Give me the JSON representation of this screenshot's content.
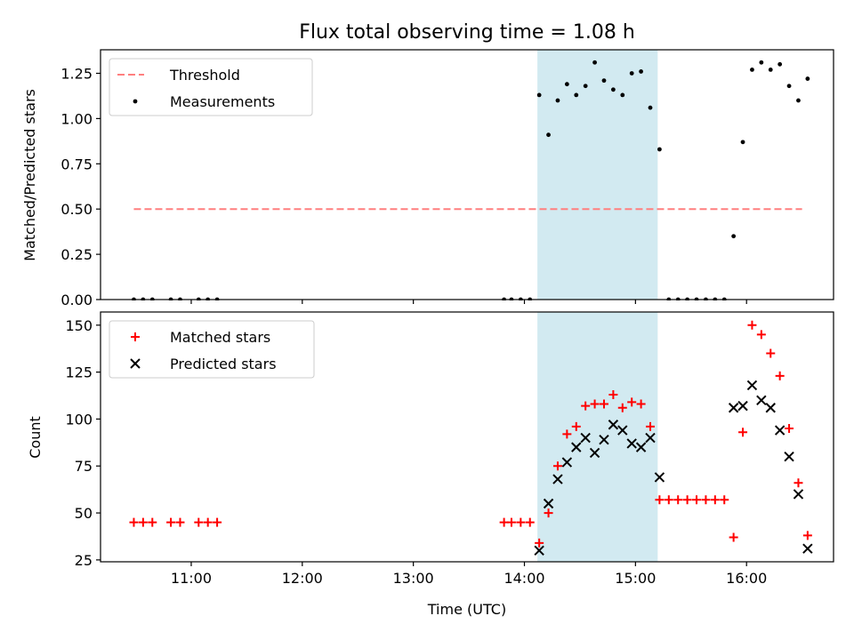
{
  "chart_data": {
    "title": "Flux total observing time = 1.08 h",
    "shaded_interval": {
      "start": "14:07",
      "end": "15:12",
      "color": "#add8e6"
    },
    "x": {
      "label": "Time (UTC)",
      "ticks": [
        "11:00",
        "12:00",
        "13:00",
        "14:00",
        "15:00",
        "16:00"
      ],
      "range": [
        "10:11",
        "16:47"
      ]
    },
    "panels": [
      {
        "type": "scatter",
        "ylabel": "Matched/Predicted stars",
        "ylim": [
          0,
          1.38
        ],
        "yticks": [
          "0.00",
          "0.25",
          "0.50",
          "0.75",
          "1.00",
          "1.25"
        ],
        "legend": {
          "position": "top-left",
          "entries": [
            "Threshold",
            "Measurements"
          ]
        },
        "threshold": {
          "name": "Threshold",
          "value": 0.5,
          "x_start": "10:29",
          "x_end": "16:30",
          "color": "#ff7f7f",
          "style": "dashed"
        },
        "series": [
          {
            "name": "Measurements",
            "marker": "dot",
            "color": "#000000",
            "points": [
              [
                "10:29",
                0
              ],
              [
                "10:34",
                0
              ],
              [
                "10:39",
                0
              ],
              [
                "10:49",
                0
              ],
              [
                "10:54",
                0
              ],
              [
                "11:04",
                0
              ],
              [
                "11:09",
                0
              ],
              [
                "11:14",
                0
              ],
              [
                "13:49",
                0
              ],
              [
                "13:53",
                0
              ],
              [
                "13:58",
                0
              ],
              [
                "14:03",
                0
              ],
              [
                "14:08",
                1.13
              ],
              [
                "14:13",
                0.91
              ],
              [
                "14:18",
                1.1
              ],
              [
                "14:23",
                1.19
              ],
              [
                "14:28",
                1.13
              ],
              [
                "14:33",
                1.18
              ],
              [
                "14:38",
                1.31
              ],
              [
                "14:43",
                1.21
              ],
              [
                "14:48",
                1.16
              ],
              [
                "14:53",
                1.13
              ],
              [
                "14:58",
                1.25
              ],
              [
                "15:03",
                1.26
              ],
              [
                "15:08",
                1.06
              ],
              [
                "15:13",
                0.83
              ],
              [
                "15:18",
                0
              ],
              [
                "15:23",
                0
              ],
              [
                "15:28",
                0
              ],
              [
                "15:33",
                0
              ],
              [
                "15:38",
                0
              ],
              [
                "15:43",
                0
              ],
              [
                "15:48",
                0
              ],
              [
                "15:53",
                0.35
              ],
              [
                "15:58",
                0.87
              ],
              [
                "16:03",
                1.27
              ],
              [
                "16:08",
                1.31
              ],
              [
                "16:13",
                1.27
              ],
              [
                "16:18",
                1.3
              ],
              [
                "16:23",
                1.18
              ],
              [
                "16:28",
                1.1
              ],
              [
                "16:33",
                1.22
              ]
            ]
          }
        ]
      },
      {
        "type": "scatter",
        "ylabel": "Count",
        "ylim": [
          24,
          157
        ],
        "yticks": [
          "25",
          "50",
          "75",
          "100",
          "125",
          "150"
        ],
        "legend": {
          "position": "top-left",
          "entries": [
            "Matched stars",
            "Predicted stars"
          ]
        },
        "series": [
          {
            "name": "Matched stars",
            "marker": "plus",
            "color": "#ff0000",
            "points": [
              [
                "10:29",
                45
              ],
              [
                "10:34",
                45
              ],
              [
                "10:39",
                45
              ],
              [
                "10:49",
                45
              ],
              [
                "10:54",
                45
              ],
              [
                "11:04",
                45
              ],
              [
                "11:09",
                45
              ],
              [
                "11:14",
                45
              ],
              [
                "13:49",
                45
              ],
              [
                "13:53",
                45
              ],
              [
                "13:58",
                45
              ],
              [
                "14:03",
                45
              ],
              [
                "14:08",
                34
              ],
              [
                "14:13",
                50
              ],
              [
                "14:18",
                75
              ],
              [
                "14:23",
                92
              ],
              [
                "14:28",
                96
              ],
              [
                "14:33",
                107
              ],
              [
                "14:38",
                108
              ],
              [
                "14:43",
                108
              ],
              [
                "14:48",
                113
              ],
              [
                "14:53",
                106
              ],
              [
                "14:58",
                109
              ],
              [
                "15:03",
                108
              ],
              [
                "15:08",
                96
              ],
              [
                "15:13",
                57
              ],
              [
                "15:18",
                57
              ],
              [
                "15:23",
                57
              ],
              [
                "15:28",
                57
              ],
              [
                "15:33",
                57
              ],
              [
                "15:38",
                57
              ],
              [
                "15:43",
                57
              ],
              [
                "15:48",
                57
              ],
              [
                "15:53",
                37
              ],
              [
                "15:58",
                93
              ],
              [
                "16:03",
                150
              ],
              [
                "16:08",
                145
              ],
              [
                "16:13",
                135
              ],
              [
                "16:18",
                123
              ],
              [
                "16:23",
                95
              ],
              [
                "16:28",
                66
              ],
              [
                "16:33",
                38
              ]
            ]
          },
          {
            "name": "Predicted stars",
            "marker": "x",
            "color": "#000000",
            "points": [
              [
                "14:08",
                30
              ],
              [
                "14:13",
                55
              ],
              [
                "14:18",
                68
              ],
              [
                "14:23",
                77
              ],
              [
                "14:28",
                85
              ],
              [
                "14:33",
                90
              ],
              [
                "14:38",
                82
              ],
              [
                "14:43",
                89
              ],
              [
                "14:48",
                97
              ],
              [
                "14:53",
                94
              ],
              [
                "14:58",
                87
              ],
              [
                "15:03",
                85
              ],
              [
                "15:08",
                90
              ],
              [
                "15:13",
                69
              ],
              [
                "15:53",
                106
              ],
              [
                "15:58",
                107
              ],
              [
                "16:03",
                118
              ],
              [
                "16:08",
                110
              ],
              [
                "16:13",
                106
              ],
              [
                "16:18",
                94
              ],
              [
                "16:23",
                80
              ],
              [
                "16:28",
                60
              ],
              [
                "16:33",
                31
              ]
            ]
          }
        ]
      }
    ]
  }
}
